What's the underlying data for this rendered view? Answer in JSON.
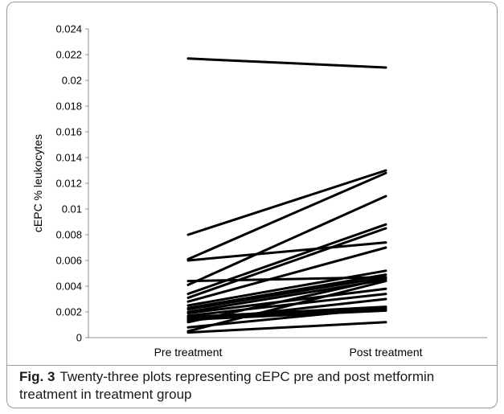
{
  "figure": {
    "label": "Fig. 3",
    "caption": "Twenty-three plots representing cEPC pre and post metformin treatment in treatment group"
  },
  "chart_data": {
    "type": "line",
    "categories": [
      "Pre treatment",
      "Post treatment"
    ],
    "ylabel": "cEPC % leukocytes",
    "xlabel": "",
    "ylim": [
      0,
      0.024
    ],
    "yticks": [
      "0",
      "0.002",
      "0.004",
      "0.006",
      "0.008",
      "0.01",
      "0.012",
      "0.014",
      "0.016",
      "0.018",
      "0.02",
      "0.022",
      "0.024"
    ],
    "grid": false,
    "line_color": "#000000",
    "series": [
      {
        "values": [
          0.0217,
          0.021
        ]
      },
      {
        "values": [
          0.008,
          0.013
        ]
      },
      {
        "values": [
          0.0061,
          0.0128
        ]
      },
      {
        "values": [
          0.006,
          0.0074
        ]
      },
      {
        "values": [
          0.0041,
          0.011
        ]
      },
      {
        "values": [
          0.0044,
          0.0047
        ]
      },
      {
        "values": [
          0.0034,
          0.0088
        ]
      },
      {
        "values": [
          0.0031,
          0.0085
        ]
      },
      {
        "values": [
          0.0028,
          0.007
        ]
      },
      {
        "values": [
          0.0025,
          0.0052
        ]
      },
      {
        "values": [
          0.0023,
          0.0049
        ]
      },
      {
        "values": [
          0.0022,
          0.0047
        ]
      },
      {
        "values": [
          0.002,
          0.0045
        ]
      },
      {
        "values": [
          0.0019,
          0.0038
        ]
      },
      {
        "values": [
          0.0017,
          0.0034
        ]
      },
      {
        "values": [
          0.0016,
          0.0024
        ]
      },
      {
        "values": [
          0.0015,
          0.0022
        ]
      },
      {
        "values": [
          0.0014,
          0.0021
        ]
      },
      {
        "values": [
          0.0013,
          0.003
        ]
      },
      {
        "values": [
          0.0012,
          0.0046
        ]
      },
      {
        "values": [
          0.0008,
          0.0023
        ]
      },
      {
        "values": [
          0.0005,
          0.0044
        ]
      },
      {
        "values": [
          0.0004,
          0.0012
        ]
      }
    ]
  }
}
